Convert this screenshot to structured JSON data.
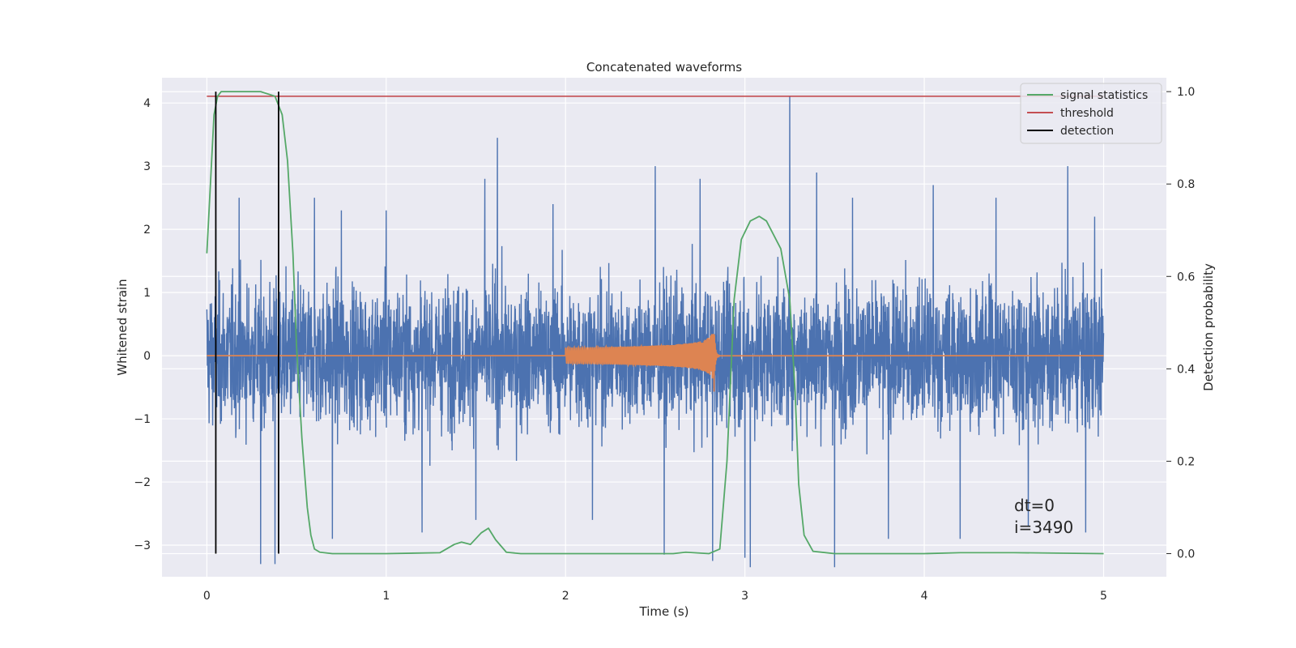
{
  "chart_data": {
    "type": "line",
    "title": "Concatenated waveforms",
    "xlabel": "Time (s)",
    "ylabel": "Whitened strain",
    "ylabel_right": "Detection probability",
    "xlim": [
      -0.25,
      5.35
    ],
    "ylim": [
      -3.5,
      4.4
    ],
    "ylim_right": [
      -0.05,
      1.03
    ],
    "x_ticks": [
      0,
      1,
      2,
      3,
      4,
      5
    ],
    "y_ticks": [
      -3,
      -2,
      -1,
      0,
      1,
      2,
      3,
      4
    ],
    "y_ticks_right": [
      0.0,
      0.2,
      0.4,
      0.6,
      0.8,
      1.0
    ],
    "x_tick_labels": [
      "0",
      "1",
      "2",
      "3",
      "4",
      "5"
    ],
    "y_tick_labels": [
      "−3",
      "−2",
      "−1",
      "0",
      "1",
      "2",
      "3",
      "4"
    ],
    "y_tick_labels_right": [
      "0.0",
      "0.2",
      "0.4",
      "0.6",
      "0.8",
      "1.0"
    ],
    "grid": true,
    "legend_position": "top-right",
    "colors": {
      "background": "#eaeaf2",
      "strain": "#4c72b0",
      "template": "#dd8452",
      "statistics": "#55a868",
      "threshold": "#c44e52",
      "detection": "#000000"
    },
    "series": [
      {
        "name": "",
        "description_role": "whitened-strain-noise",
        "axis": "left",
        "x_range": [
          0,
          5
        ],
        "typical_amplitude": 1.1,
        "spikes": [
          {
            "x": 0.05,
            "y": 2.0
          },
          {
            "x": 0.18,
            "y": 2.5
          },
          {
            "x": 0.3,
            "y": -3.3
          },
          {
            "x": 0.38,
            "y": -3.3
          },
          {
            "x": 0.6,
            "y": 2.5
          },
          {
            "x": 0.7,
            "y": -2.9
          },
          {
            "x": 0.75,
            "y": 2.3
          },
          {
            "x": 1.0,
            "y": 2.3
          },
          {
            "x": 1.2,
            "y": -2.8
          },
          {
            "x": 1.5,
            "y": -2.6
          },
          {
            "x": 1.55,
            "y": 2.8
          },
          {
            "x": 1.62,
            "y": 3.45
          },
          {
            "x": 1.93,
            "y": 2.4
          },
          {
            "x": 2.15,
            "y": -2.6
          },
          {
            "x": 2.5,
            "y": 3.0
          },
          {
            "x": 2.55,
            "y": -3.15
          },
          {
            "x": 2.75,
            "y": 2.8
          },
          {
            "x": 2.82,
            "y": -3.25
          },
          {
            "x": 3.0,
            "y": -3.2
          },
          {
            "x": 3.03,
            "y": -3.35
          },
          {
            "x": 3.25,
            "y": 4.1
          },
          {
            "x": 3.4,
            "y": 2.9
          },
          {
            "x": 3.5,
            "y": -3.35
          },
          {
            "x": 3.6,
            "y": 2.5
          },
          {
            "x": 3.8,
            "y": -2.9
          },
          {
            "x": 4.05,
            "y": 2.7
          },
          {
            "x": 4.2,
            "y": -2.9
          },
          {
            "x": 4.4,
            "y": 2.5
          },
          {
            "x": 4.58,
            "y": -2.7
          },
          {
            "x": 4.8,
            "y": 3.0
          },
          {
            "x": 4.9,
            "y": -2.8
          },
          {
            "x": 4.95,
            "y": 2.2
          }
        ]
      },
      {
        "name": "",
        "description_role": "injected-chirp",
        "axis": "left",
        "x_range": [
          0,
          5
        ],
        "chirp_start": 2.0,
        "chirp_merger": 2.83,
        "peak_amplitude": 0.65
      },
      {
        "name": "signal statistics",
        "axis": "right",
        "x": [
          0.0,
          0.02,
          0.04,
          0.06,
          0.08,
          0.1,
          0.3,
          0.38,
          0.42,
          0.45,
          0.48,
          0.5,
          0.53,
          0.56,
          0.58,
          0.6,
          0.63,
          0.7,
          1.0,
          1.3,
          1.38,
          1.42,
          1.47,
          1.53,
          1.57,
          1.61,
          1.67,
          1.75,
          2.0,
          2.6,
          2.67,
          2.8,
          2.86,
          2.9,
          2.94,
          2.98,
          3.03,
          3.08,
          3.12,
          3.2,
          3.25,
          3.28,
          3.3,
          3.33,
          3.38,
          3.5,
          4.0,
          4.2,
          4.5,
          5.0
        ],
        "y": [
          0.65,
          0.8,
          0.95,
          0.99,
          1.0,
          1.0,
          1.0,
          0.99,
          0.95,
          0.85,
          0.65,
          0.45,
          0.25,
          0.1,
          0.04,
          0.01,
          0.003,
          0.0,
          0.0,
          0.002,
          0.02,
          0.025,
          0.02,
          0.045,
          0.055,
          0.03,
          0.003,
          0.0,
          0.0,
          0.0,
          0.003,
          0.0,
          0.01,
          0.2,
          0.55,
          0.68,
          0.72,
          0.73,
          0.72,
          0.66,
          0.55,
          0.35,
          0.15,
          0.04,
          0.005,
          0.0,
          0.0,
          0.002,
          0.002,
          0.0
        ]
      },
      {
        "name": "threshold",
        "axis": "right",
        "x": [
          0,
          5
        ],
        "y": [
          0.99,
          0.99
        ]
      },
      {
        "name": "detection",
        "axis": "right",
        "vlines": [
          0.05,
          0.4
        ],
        "y_span": [
          0.0,
          1.0
        ]
      }
    ],
    "annotation": {
      "lines": [
        "dt=0",
        "i=3490"
      ],
      "x": 4.5,
      "y": -2.6
    }
  }
}
